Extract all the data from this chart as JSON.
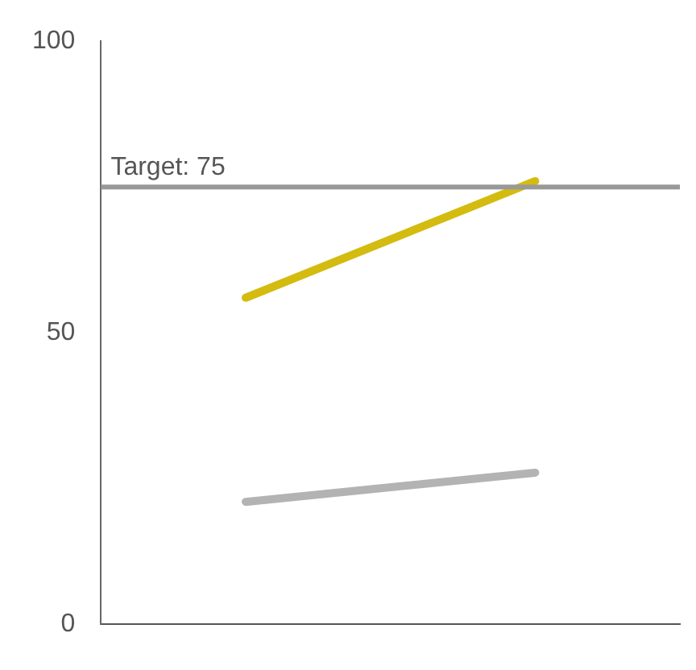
{
  "chart_data": {
    "type": "line",
    "categories": [
      null,
      null
    ],
    "series": [
      {
        "color": "#d4bb10",
        "values": [
          56,
          76
        ]
      },
      {
        "color": "#b3b3b3",
        "values": [
          21,
          26
        ]
      }
    ],
    "ylim": [
      0,
      100
    ],
    "yticks": [
      0,
      50,
      100
    ],
    "grid": false,
    "legend": false,
    "marker": "none",
    "line_style": "solid",
    "ref_lines": [
      {
        "axis": "y",
        "value": 75,
        "label": "Target: 75",
        "color": "#999999",
        "line_style": "solid"
      }
    ]
  }
}
